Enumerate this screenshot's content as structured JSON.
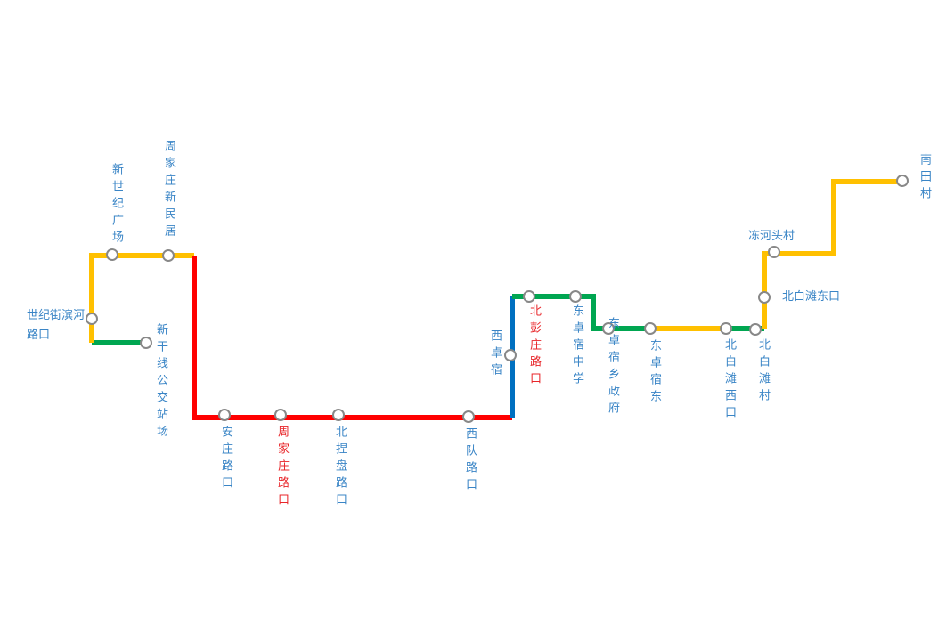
{
  "stations": [
    {
      "name": "世纪街滨河路口"
    },
    {
      "name": "新世纪广场"
    },
    {
      "name": "周家庄新民居"
    },
    {
      "name": "新干线公交站场"
    },
    {
      "name": "安庄路口"
    },
    {
      "name": "周家庄路口"
    },
    {
      "name": "北捏盘路口"
    },
    {
      "name": "西队路口"
    },
    {
      "name": "西卓宿"
    },
    {
      "name": "北彭庄路口"
    },
    {
      "name": "东卓宿中学"
    },
    {
      "name": "东卓宿乡政府"
    },
    {
      "name": "东卓宿东"
    },
    {
      "name": "北白滩西口"
    },
    {
      "name": "北白滩村"
    },
    {
      "name": "北白滩东口"
    },
    {
      "name": "冻河头村"
    },
    {
      "name": "南田村"
    }
  ]
}
